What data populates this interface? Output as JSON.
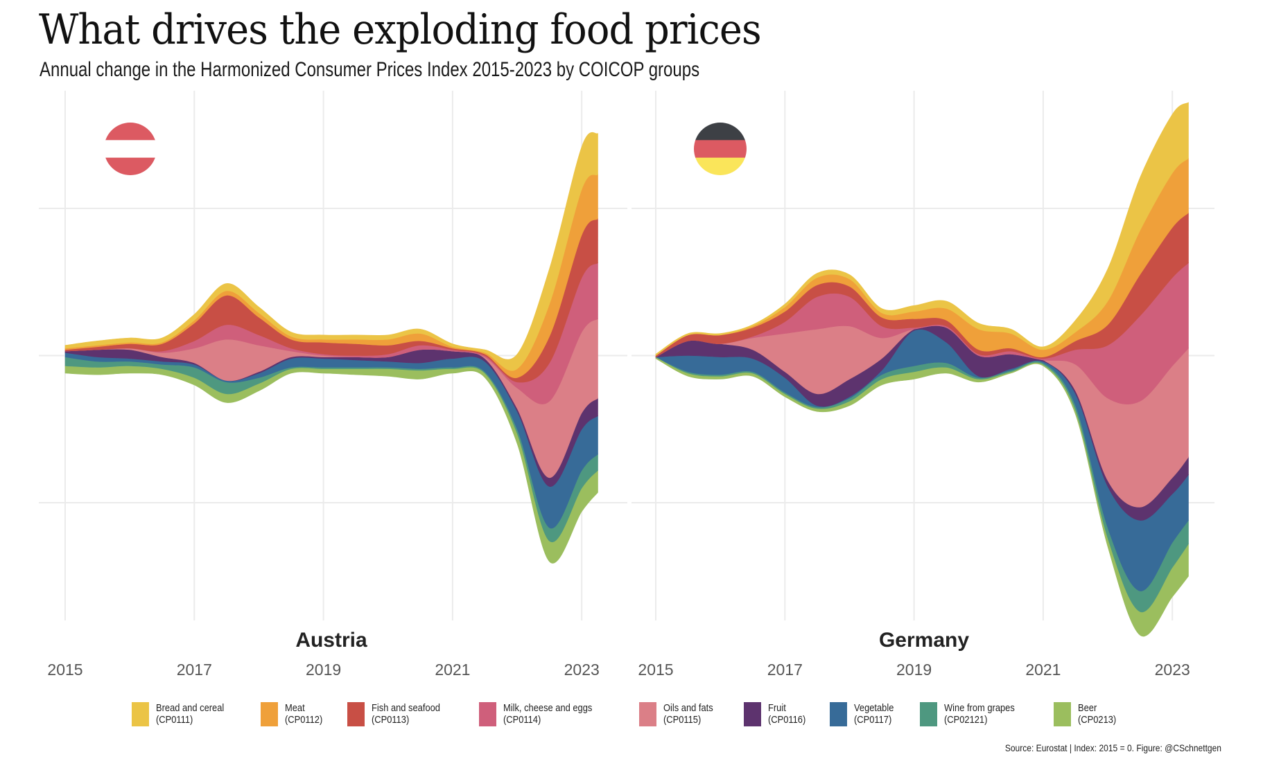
{
  "title": "What drives the exploding food prices",
  "subtitle": "Annual change in the Harmonized Consumer Prices Index 2015-2023 by COICOP groups",
  "caption": "Source: Eurostat | Index: 2015 = 0. Figure: @CSchnettgen",
  "legend": [
    {
      "label": "Bread and cereal",
      "code": "(CP0111)",
      "color": "#EBC446"
    },
    {
      "label": "Meat",
      "code": "(CP0112)",
      "color": "#EFA03A"
    },
    {
      "label": "Fish and seafood",
      "code": "(CP0113)",
      "color": "#C84F45"
    },
    {
      "label": "Milk, cheese and eggs",
      "code": "(CP0114)",
      "color": "#CF5F7B"
    },
    {
      "label": "Oils and fats",
      "code": "(CP0115)",
      "color": "#DB7F87"
    },
    {
      "label": "Fruit",
      "code": "(CP0116)",
      "color": "#5D336E"
    },
    {
      "label": "Vegetable",
      "code": "(CP0117)",
      "color": "#376B98"
    },
    {
      "label": "Wine from grapes",
      "code": "(CP02121)",
      "color": "#4E9880"
    },
    {
      "label": "Beer",
      "code": "(CP0213)",
      "color": "#9BBE5E"
    }
  ],
  "flags": {
    "austria": [
      "#DC5A62",
      "#FFFFFF",
      "#DC5A62"
    ],
    "germany": [
      "#3D4045",
      "#DC5A62",
      "#FAE55A"
    ]
  },
  "chart_data": [
    {
      "type": "area",
      "subtype": "streamgraph",
      "panel": "Austria",
      "title": "Austria",
      "xlabel": "",
      "ylabel": "",
      "x_ticks": [
        "2015",
        "2017",
        "2019",
        "2021",
        "2023"
      ],
      "xlim": [
        2015,
        2023.25
      ],
      "y_gridlines": [
        -100,
        0,
        100
      ],
      "y_tick_labels_visible": false,
      "x": [
        2015.0,
        2015.5,
        2016.0,
        2016.5,
        2017.0,
        2017.5,
        2018.0,
        2018.5,
        2019.0,
        2019.5,
        2020.0,
        2020.5,
        2021.0,
        2021.5,
        2022.0,
        2022.5,
        2023.0,
        2023.25
      ],
      "baseline": [
        -12,
        -13,
        -12,
        -13,
        -20,
        -32,
        -24,
        -12,
        -12,
        -13,
        -14,
        -16,
        -12,
        -15,
        -60,
        -140,
        -106,
        -93
      ],
      "series": [
        {
          "name": "Bread and cereal (CP0111)",
          "values": [
            2,
            3,
            3,
            3,
            4,
            5,
            4,
            3,
            3,
            3,
            3,
            3,
            2,
            2,
            10,
            24,
            29,
            28
          ]
        },
        {
          "name": "Meat (CP0112)",
          "values": [
            1,
            1,
            1,
            1,
            2,
            3,
            3,
            2,
            2,
            3,
            4,
            5,
            1,
            1,
            6,
            22,
            31,
            30
          ]
        },
        {
          "name": "Fish and seafood (CP0113)",
          "values": [
            1,
            2,
            3,
            5,
            12,
            20,
            12,
            6,
            8,
            8,
            6,
            3,
            1,
            1,
            3,
            18,
            29,
            30
          ]
        },
        {
          "name": "Milk, cheese and eggs (CP0114)",
          "values": [
            0,
            0,
            0,
            1,
            5,
            10,
            7,
            2,
            1,
            1,
            2,
            3,
            1,
            1,
            4,
            26,
            37,
            38
          ]
        },
        {
          "name": "Oils and fats (CP0115)",
          "values": [
            0,
            0,
            1,
            3,
            10,
            28,
            18,
            4,
            1,
            0,
            0,
            0,
            0,
            1,
            14,
            52,
            55,
            54
          ]
        },
        {
          "name": "Fruit (CP0116)",
          "values": [
            1,
            5,
            6,
            3,
            1,
            0,
            1,
            1,
            1,
            2,
            3,
            9,
            5,
            2,
            2,
            6,
            11,
            12
          ]
        },
        {
          "name": "Vegetable (CP0117)",
          "values": [
            3,
            3,
            2,
            2,
            2,
            1,
            3,
            6,
            6,
            5,
            4,
            4,
            6,
            7,
            12,
            28,
            28,
            26
          ]
        },
        {
          "name": "Wine from grapes (CP02121)",
          "values": [
            6,
            4,
            3,
            3,
            7,
            8,
            4,
            1,
            1,
            1,
            1,
            1,
            1,
            1,
            3,
            9,
            12,
            11
          ]
        },
        {
          "name": "Beer (CP0213)",
          "values": [
            5,
            5,
            5,
            4,
            5,
            6,
            5,
            3,
            3,
            4,
            5,
            6,
            3,
            3,
            7,
            14,
            16,
            15
          ]
        }
      ]
    },
    {
      "type": "area",
      "subtype": "streamgraph",
      "panel": "Germany",
      "title": "Germany",
      "xlabel": "",
      "ylabel": "",
      "x_ticks": [
        "2015",
        "2017",
        "2019",
        "2021",
        "2023"
      ],
      "xlim": [
        2015,
        2023.25
      ],
      "y_gridlines": [
        -100,
        0,
        100
      ],
      "y_tick_labels_visible": false,
      "x": [
        2015.0,
        2015.5,
        2016.0,
        2016.5,
        2017.0,
        2017.5,
        2018.0,
        2018.5,
        2019.0,
        2019.5,
        2020.0,
        2020.5,
        2021.0,
        2021.5,
        2022.0,
        2022.5,
        2023.0,
        2023.25
      ],
      "baseline": [
        -2,
        -14,
        -16,
        -14,
        -28,
        -38,
        -34,
        -20,
        -16,
        -12,
        -18,
        -12,
        -7,
        -40,
        -130,
        -190,
        -164,
        -150
      ],
      "series": [
        {
          "name": "Bread and cereal (CP0111)",
          "values": [
            1,
            1,
            1,
            1,
            2,
            3,
            3,
            3,
            4,
            5,
            4,
            3,
            2,
            8,
            22,
            36,
            40,
            38
          ]
        },
        {
          "name": "Meat (CP0112)",
          "values": [
            0,
            0,
            0,
            1,
            3,
            5,
            5,
            3,
            5,
            8,
            14,
            10,
            5,
            6,
            16,
            30,
            37,
            37
          ]
        },
        {
          "name": "Fish and seafood (CP0113)",
          "values": [
            1,
            4,
            6,
            6,
            7,
            8,
            7,
            6,
            6,
            4,
            3,
            2,
            1,
            6,
            14,
            28,
            34,
            34
          ]
        },
        {
          "name": "Milk, cheese and eggs (CP0114)",
          "values": [
            0,
            0,
            0,
            1,
            8,
            22,
            20,
            8,
            1,
            1,
            1,
            2,
            1,
            10,
            36,
            58,
            60,
            58
          ]
        },
        {
          "name": "Oils and fats (CP0115)",
          "values": [
            0,
            0,
            0,
            8,
            26,
            44,
            36,
            14,
            0,
            0,
            0,
            0,
            0,
            18,
            56,
            72,
            76,
            74
          ]
        },
        {
          "name": "Fruit (CP0116)",
          "values": [
            0,
            10,
            9,
            6,
            4,
            8,
            12,
            8,
            1,
            10,
            14,
            10,
            1,
            2,
            4,
            9,
            11,
            12
          ]
        },
        {
          "name": "Vegetable (CP0117)",
          "values": [
            0,
            11,
            12,
            9,
            10,
            1,
            1,
            3,
            24,
            14,
            1,
            1,
            1,
            8,
            28,
            48,
            33,
            31
          ]
        },
        {
          "name": "Wine from grapes (CP02121)",
          "values": [
            0,
            1,
            1,
            1,
            1,
            1,
            2,
            3,
            4,
            3,
            1,
            1,
            1,
            3,
            7,
            14,
            17,
            16
          ]
        },
        {
          "name": "Beer (CP0213)",
          "values": [
            1,
            2,
            2,
            2,
            2,
            2,
            3,
            4,
            5,
            4,
            2,
            1,
            1,
            3,
            6,
            16,
            20,
            22
          ]
        }
      ]
    }
  ]
}
